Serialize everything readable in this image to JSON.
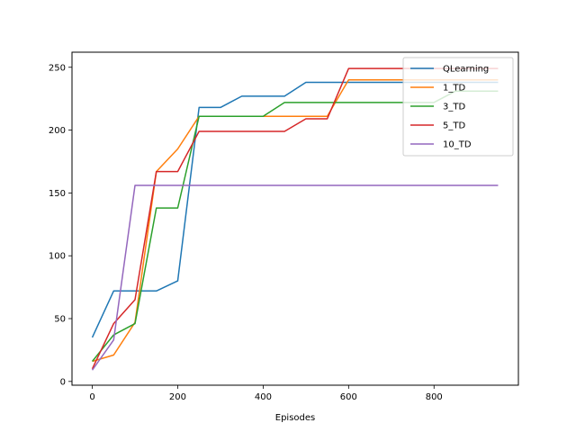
{
  "chart_data": {
    "type": "line",
    "title": "",
    "xlabel": "Episodes",
    "ylabel": "",
    "xlim": [
      -47.5,
      997.5
    ],
    "ylim": [
      -3,
      262
    ],
    "x_ticks": [
      0,
      200,
      400,
      600,
      800
    ],
    "y_ticks": [
      0,
      50,
      100,
      150,
      200,
      250
    ],
    "grid": false,
    "legend_position": "top-right",
    "x": [
      0,
      50,
      100,
      150,
      200,
      250,
      300,
      350,
      400,
      450,
      500,
      550,
      600,
      650,
      700,
      750,
      800,
      850,
      900,
      950
    ],
    "series": [
      {
        "name": "QLearning",
        "color": "#1f77b4",
        "values": [
          35,
          72,
          72,
          72,
          80,
          218,
          218,
          227,
          227,
          227,
          238,
          238,
          238,
          238,
          238,
          238,
          238,
          238,
          238,
          238
        ]
      },
      {
        "name": "1_TD",
        "color": "#ff7f0e",
        "values": [
          16,
          21,
          47,
          167,
          185,
          211,
          211,
          211,
          211,
          211,
          211,
          211,
          240,
          240,
          240,
          240,
          240,
          240,
          240,
          240
        ]
      },
      {
        "name": "3_TD",
        "color": "#2ca02c",
        "values": [
          16,
          37,
          46,
          138,
          138,
          211,
          211,
          211,
          211,
          222,
          222,
          222,
          222,
          222,
          222,
          222,
          222,
          231,
          231,
          231
        ]
      },
      {
        "name": "5_TD",
        "color": "#d62728",
        "values": [
          10,
          46,
          65,
          167,
          167,
          199,
          199,
          199,
          199,
          199,
          209,
          209,
          249,
          249,
          249,
          249,
          249,
          249,
          249,
          249
        ]
      },
      {
        "name": "10_TD",
        "color": "#9467bd",
        "values": [
          9,
          33,
          156,
          156,
          156,
          156,
          156,
          156,
          156,
          156,
          156,
          156,
          156,
          156,
          156,
          156,
          156,
          156,
          156,
          156
        ]
      }
    ]
  }
}
